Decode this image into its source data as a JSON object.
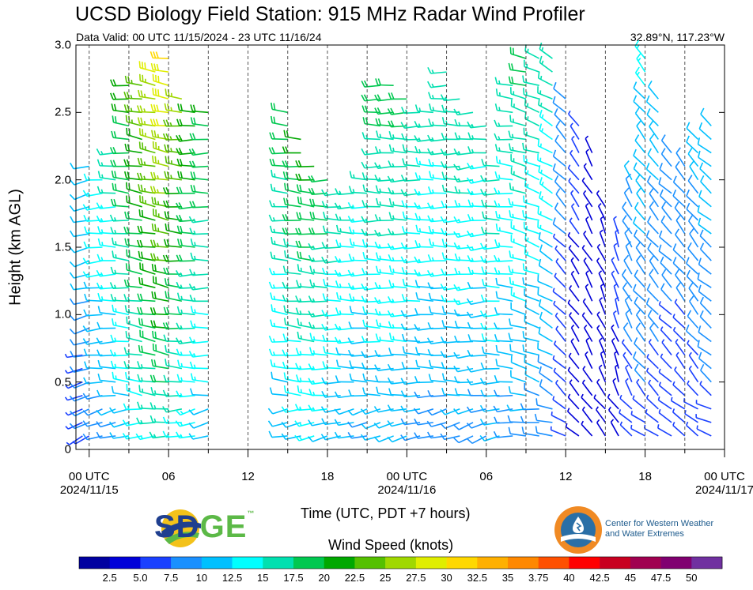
{
  "header": {
    "title": "UCSD Biology Field Station: 915 MHz Radar Wind Profiler",
    "subtitle": "Data Valid: 00 UTC 11/15/2024 - 23 UTC 11/16/24",
    "location": "32.89°N, 117.23°W"
  },
  "logos": {
    "sdge_sd": "SD",
    "sdge_ge": "GE",
    "sdge_tm": "™",
    "cw3e": "Center for Western Weather and Water Extremes"
  },
  "chart_data": {
    "type": "wind-barbs",
    "xlabel": "Time (UTC, PDT +7 hours)",
    "ylabel": "Height (km AGL)",
    "colorbar_label": "Wind Speed (knots)",
    "x_range_hours": [
      -1,
      48
    ],
    "ylim": [
      0,
      3.0
    ],
    "y_ticks": [
      "0",
      "0.5",
      "1.0",
      "1.5",
      "2.0",
      "2.5",
      "3.0"
    ],
    "y_tick_values": [
      0,
      0.5,
      1.0,
      1.5,
      2.0,
      2.5,
      3.0
    ],
    "x_ticks": [
      {
        "hour": 0,
        "line1": "00 UTC",
        "line2": "2024/11/15"
      },
      {
        "hour": 6,
        "line1": "06",
        "line2": ""
      },
      {
        "hour": 12,
        "line1": "12",
        "line2": ""
      },
      {
        "hour": 18,
        "line1": "18",
        "line2": ""
      },
      {
        "hour": 24,
        "line1": "00 UTC",
        "line2": "2024/11/16"
      },
      {
        "hour": 30,
        "line1": "06",
        "line2": ""
      },
      {
        "hour": 36,
        "line1": "12",
        "line2": ""
      },
      {
        "hour": 42,
        "line1": "18",
        "line2": ""
      },
      {
        "hour": 48,
        "line1": "00 UTC",
        "line2": "2024/11/17"
      }
    ],
    "colorbar_labels": [
      "2.5",
      "5.0",
      "7.5",
      "10",
      "12.5",
      "15",
      "17.5",
      "20",
      "22.5",
      "25",
      "27.5",
      "30",
      "32.5",
      "35",
      "3.75",
      "40",
      "42.5",
      "45",
      "47.5",
      "50"
    ],
    "colorbar_colors": [
      "#0000a0",
      "#0000d8",
      "#1a40ff",
      "#1a90ff",
      "#00c0ff",
      "#00ffff",
      "#00e0b0",
      "#00c850",
      "#00a800",
      "#55c000",
      "#a0d800",
      "#e0ee00",
      "#ffd800",
      "#ffb000",
      "#ff8800",
      "#ff5000",
      "#ff0000",
      "#c80020",
      "#a00050",
      "#800070",
      "#7030a0"
    ],
    "profiles": [
      {
        "hour": -0.5,
        "top": 0.7,
        "dir": 255,
        "speed": 11
      },
      {
        "hour": 0,
        "top": 2.1,
        "dir": 255,
        "speed": 13
      },
      {
        "hour": 1,
        "top": 2.05,
        "dir": 265,
        "speed": 16
      },
      {
        "hour": 2,
        "top": 2.2,
        "dir": 270,
        "speed": 17
      },
      {
        "hour": 3,
        "top": 2.7,
        "dir": 275,
        "speed": 20
      },
      {
        "hour": 4,
        "top": 2.75,
        "dir": 280,
        "speed": 23
      },
      {
        "hour": 5,
        "top": 2.8,
        "dir": 280,
        "speed": 26
      },
      {
        "hour": 6,
        "top": 2.9,
        "dir": 280,
        "speed": 28
      },
      {
        "hour": 7,
        "top": 2.6,
        "dir": 275,
        "speed": 25
      },
      {
        "hour": 8,
        "top": 2.5,
        "dir": 270,
        "speed": 22
      },
      {
        "hour": 9,
        "top": 2.5,
        "dir": 270,
        "speed": 20
      },
      {
        "hour": 15,
        "top": 2.5,
        "dir": 275,
        "speed": 19
      },
      {
        "hour": 16,
        "top": 2.3,
        "dir": 275,
        "speed": 21
      },
      {
        "hour": 17,
        "top": 2.15,
        "dir": 275,
        "speed": 22
      },
      {
        "hour": 18,
        "top": 2.05,
        "dir": 270,
        "speed": 21
      },
      {
        "hour": 19,
        "top": 1.9,
        "dir": 270,
        "speed": 19
      },
      {
        "hour": 20,
        "top": 1.95,
        "dir": 270,
        "speed": 18
      },
      {
        "hour": 21,
        "top": 2.0,
        "dir": 270,
        "speed": 17
      },
      {
        "hour": 22,
        "top": 2.7,
        "dir": 270,
        "speed": 18
      },
      {
        "hour": 23,
        "top": 2.7,
        "dir": 270,
        "speed": 18
      },
      {
        "hour": 24,
        "top": 2.6,
        "dir": 270,
        "speed": 18
      },
      {
        "hour": 25,
        "top": 2.55,
        "dir": 270,
        "speed": 17
      },
      {
        "hour": 26,
        "top": 2.55,
        "dir": 270,
        "speed": 16
      },
      {
        "hour": 27,
        "top": 2.8,
        "dir": 270,
        "speed": 16
      },
      {
        "hour": 28,
        "top": 2.65,
        "dir": 270,
        "speed": 17
      },
      {
        "hour": 29,
        "top": 2.55,
        "dir": 265,
        "speed": 17
      },
      {
        "hour": 30,
        "top": 2.4,
        "dir": 265,
        "speed": 16
      },
      {
        "hour": 31,
        "top": 2.1,
        "dir": 270,
        "speed": 18
      },
      {
        "hour": 32,
        "top": 2.7,
        "dir": 275,
        "speed": 16
      },
      {
        "hour": 33,
        "top": 2.9,
        "dir": 285,
        "speed": 17
      },
      {
        "hour": 34,
        "top": 2.9,
        "dir": 290,
        "speed": 16
      },
      {
        "hour": 35,
        "top": 2.95,
        "dir": 300,
        "speed": 15
      },
      {
        "hour": 36,
        "top": 2.6,
        "dir": 315,
        "speed": 9
      },
      {
        "hour": 37,
        "top": 2.45,
        "dir": 325,
        "speed": 6
      },
      {
        "hour": 38,
        "top": 2.2,
        "dir": 330,
        "speed": 5
      },
      {
        "hour": 39,
        "top": 1.8,
        "dir": 335,
        "speed": 5
      },
      {
        "hour": 40,
        "top": 1.6,
        "dir": 340,
        "speed": 7
      },
      {
        "hour": 41,
        "top": 2.0,
        "dir": 330,
        "speed": 11
      },
      {
        "hour": 42,
        "top": 2.9,
        "dir": 320,
        "speed": 12
      },
      {
        "hour": 43,
        "top": 2.6,
        "dir": 320,
        "speed": 11
      },
      {
        "hour": 44,
        "top": 2.2,
        "dir": 315,
        "speed": 10
      },
      {
        "hour": 45,
        "top": 2.1,
        "dir": 320,
        "speed": 10
      },
      {
        "hour": 46,
        "top": 2.3,
        "dir": 320,
        "speed": 11
      },
      {
        "hour": 47,
        "top": 2.4,
        "dir": 310,
        "speed": 12
      }
    ]
  }
}
